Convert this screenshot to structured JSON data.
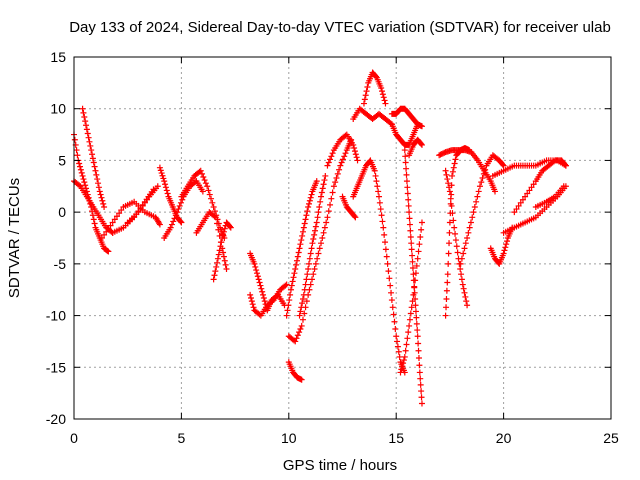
{
  "chart_data": {
    "type": "scatter",
    "title": "Day 133 of 2024, Sidereal Day-to-day VTEC variation (SDTVAR) for receiver ulab",
    "xlabel": "GPS time / hours",
    "ylabel": "SDTVAR / TECUs",
    "xlim": [
      0,
      25
    ],
    "ylim": [
      -20,
      15
    ],
    "xticks": [
      0,
      5,
      10,
      15,
      20,
      25
    ],
    "xtick_labels": [
      "0",
      "5",
      "10",
      "15",
      "20",
      "25"
    ],
    "yticks": [
      -20,
      -15,
      -10,
      -5,
      0,
      5,
      10,
      15
    ],
    "ytick_labels": [
      "-20",
      "-15",
      "-10",
      "-5",
      "0",
      "5",
      "10",
      "15"
    ],
    "grid": true,
    "marker": "+",
    "marker_color": "#ff0000",
    "series": [
      {
        "name": "s1",
        "x": [
          0.0,
          0.2,
          0.4,
          0.6,
          0.8,
          1.0,
          1.2,
          1.4,
          1.6
        ],
        "y": [
          7.5,
          5.0,
          3.5,
          2.0,
          0.5,
          -1.5,
          -2.5,
          -3.5,
          -3.8
        ]
      },
      {
        "name": "s2",
        "x": [
          0.4,
          0.6,
          0.8,
          1.0,
          1.2,
          1.4
        ],
        "y": [
          10.0,
          8.0,
          6.0,
          4.0,
          2.0,
          0.5
        ]
      },
      {
        "name": "s3",
        "x": [
          0.0,
          0.3,
          0.6,
          0.9,
          1.2,
          1.5,
          1.8
        ],
        "y": [
          3.0,
          2.5,
          1.5,
          0.5,
          -0.5,
          -1.5,
          -2.0
        ]
      },
      {
        "name": "s4",
        "x": [
          1.3,
          1.8,
          2.3,
          2.8,
          3.3,
          3.8,
          4.0
        ],
        "y": [
          -2.5,
          -1.0,
          0.5,
          1.0,
          0.0,
          -0.5,
          -1.2
        ]
      },
      {
        "name": "s5",
        "x": [
          1.8,
          2.3,
          2.8,
          3.3,
          3.7
        ],
        "y": [
          -2.0,
          -1.5,
          -0.5,
          1.0,
          2.2
        ]
      },
      {
        "name": "s6",
        "x": [
          2.5,
          3.0,
          3.5,
          3.9
        ],
        "y": [
          -1.0,
          0.0,
          1.5,
          2.5
        ]
      },
      {
        "name": "s7",
        "x": [
          4.0,
          4.2,
          4.4,
          4.6,
          4.8,
          5.0
        ],
        "y": [
          4.3,
          3.0,
          1.5,
          0.5,
          -0.5,
          -1.0
        ]
      },
      {
        "name": "s8",
        "x": [
          4.2,
          4.5,
          4.8,
          5.1,
          5.4,
          5.7,
          6.0
        ],
        "y": [
          -2.5,
          -1.5,
          0.0,
          1.5,
          2.5,
          3.0,
          2.0
        ]
      },
      {
        "name": "s9",
        "x": [
          5.0,
          5.3,
          5.6,
          5.9,
          6.2,
          6.5,
          6.8,
          7.0
        ],
        "y": [
          1.5,
          2.5,
          3.5,
          4.0,
          2.5,
          0.5,
          -1.5,
          -2.5
        ]
      },
      {
        "name": "s10",
        "x": [
          5.7,
          6.0,
          6.3,
          6.6,
          6.9,
          7.1
        ],
        "y": [
          -2.0,
          -1.0,
          0.0,
          -0.5,
          -3.5,
          -5.5
        ]
      },
      {
        "name": "s11",
        "x": [
          6.5,
          6.7,
          6.9,
          7.1,
          7.3
        ],
        "y": [
          -6.5,
          -4.5,
          -2.5,
          -1.0,
          -1.5
        ]
      },
      {
        "name": "s12",
        "x": [
          8.2,
          8.4,
          8.6,
          8.8,
          9.0,
          9.2,
          9.5,
          9.8
        ],
        "y": [
          -4.0,
          -5.0,
          -6.5,
          -8.0,
          -9.5,
          -8.5,
          -8.0,
          -9.0
        ]
      },
      {
        "name": "s13",
        "x": [
          8.2,
          8.4,
          8.7,
          9.0,
          9.3,
          9.6,
          9.9
        ],
        "y": [
          -8.0,
          -9.5,
          -10.0,
          -9.0,
          -8.5,
          -7.5,
          -7.0
        ]
      },
      {
        "name": "s14",
        "x": [
          10.0,
          10.2,
          10.4,
          10.6
        ],
        "y": [
          -14.5,
          -15.5,
          -16.0,
          -16.2
        ]
      },
      {
        "name": "s15",
        "x": [
          10.0,
          10.3,
          10.6,
          10.9,
          11.2,
          11.5,
          11.8,
          12.1,
          12.4,
          12.7,
          12.9
        ],
        "y": [
          -12.0,
          -12.5,
          -11.0,
          -8.0,
          -5.5,
          -3.0,
          -0.5,
          2.5,
          4.5,
          6.0,
          7.0
        ]
      },
      {
        "name": "s16",
        "x": [
          10.5,
          10.7,
          10.9,
          11.1,
          11.3,
          11.5,
          11.7
        ],
        "y": [
          -10.0,
          -8.0,
          -5.5,
          -3.0,
          -1.0,
          1.5,
          3.5
        ]
      },
      {
        "name": "s17",
        "x": [
          9.9,
          10.1,
          10.3,
          10.5,
          10.7,
          10.9,
          11.1,
          11.3
        ],
        "y": [
          -10.0,
          -7.5,
          -5.5,
          -3.5,
          -1.5,
          0.5,
          2.0,
          3.0
        ]
      },
      {
        "name": "s18",
        "x": [
          11.8,
          12.1,
          12.4,
          12.7,
          13.0,
          13.2
        ],
        "y": [
          4.5,
          6.0,
          7.0,
          7.5,
          6.5,
          5.0
        ]
      },
      {
        "name": "s19",
        "x": [
          12.5,
          12.7,
          12.9,
          13.1
        ],
        "y": [
          1.5,
          0.5,
          0.0,
          -0.5
        ]
      },
      {
        "name": "s20",
        "x": [
          13.0,
          13.3,
          13.6,
          13.9,
          14.2,
          14.5,
          14.8
        ],
        "y": [
          9.0,
          10.0,
          9.5,
          9.0,
          9.5,
          9.0,
          8.5
        ]
      },
      {
        "name": "s21",
        "x": [
          13.5,
          13.7,
          13.9,
          14.1,
          14.3,
          14.5
        ],
        "y": [
          10.5,
          12.5,
          13.5,
          13.0,
          12.0,
          10.5
        ]
      },
      {
        "name": "s22",
        "x": [
          13.0,
          13.2,
          13.4,
          13.6,
          13.8,
          14.0,
          14.2,
          14.4,
          14.6,
          14.8,
          15.0,
          15.2,
          15.4
        ],
        "y": [
          1.5,
          2.5,
          3.5,
          4.5,
          5.0,
          4.0,
          1.5,
          -1.5,
          -5.0,
          -8.5,
          -12.0,
          -14.5,
          -15.5
        ]
      },
      {
        "name": "s23",
        "x": [
          14.8,
          15.0,
          15.2,
          15.4,
          15.6,
          15.8,
          16.0,
          16.2
        ],
        "y": [
          9.5,
          9.5,
          10.0,
          10.0,
          9.5,
          9.0,
          8.5,
          8.3
        ]
      },
      {
        "name": "s24",
        "x": [
          14.8,
          15.0,
          15.2,
          15.4,
          15.6,
          15.8,
          16.0
        ],
        "y": [
          8.5,
          7.5,
          7.0,
          6.5,
          6.5,
          7.5,
          8.5
        ]
      },
      {
        "name": "s25",
        "x": [
          15.4,
          15.5,
          15.6,
          15.7,
          15.8,
          15.9,
          16.0,
          16.1,
          16.2
        ],
        "y": [
          6.0,
          3.0,
          0.0,
          -3.0,
          -6.0,
          -9.0,
          -12.0,
          -15.5,
          -18.5
        ]
      },
      {
        "name": "s26",
        "x": [
          15.6,
          15.8,
          16.0,
          16.2
        ],
        "y": [
          5.5,
          6.5,
          7.0,
          6.5
        ]
      },
      {
        "name": "s27",
        "x": [
          15.2,
          15.4,
          15.6,
          15.8,
          16.0,
          16.2
        ],
        "y": [
          -15.5,
          -14.0,
          -11.0,
          -8.0,
          -4.5,
          -1.0
        ]
      },
      {
        "name": "s28",
        "x": [
          17.3,
          17.4,
          17.5,
          17.6,
          17.8,
          18.0,
          18.2,
          18.4
        ],
        "y": [
          -10.0,
          -6.0,
          -1.0,
          3.5,
          5.5,
          6.0,
          6.2,
          6.0
        ]
      },
      {
        "name": "s29",
        "x": [
          17.0,
          17.3,
          17.6,
          17.9,
          18.2,
          18.5,
          18.8,
          19.1,
          19.4,
          19.6
        ],
        "y": [
          5.5,
          5.8,
          6.0,
          6.0,
          6.0,
          5.8,
          5.0,
          4.0,
          3.0,
          2.0
        ]
      },
      {
        "name": "s30",
        "x": [
          17.3,
          17.5,
          17.7,
          17.9,
          18.1,
          18.3
        ],
        "y": [
          4.0,
          2.0,
          -1.5,
          -4.5,
          -7.0,
          -9.0
        ]
      },
      {
        "name": "s31",
        "x": [
          18.0,
          18.3,
          18.6,
          18.9,
          19.2,
          19.5,
          19.8,
          20.0
        ],
        "y": [
          -5.0,
          -2.5,
          0.0,
          2.5,
          4.5,
          5.5,
          5.0,
          4.5
        ]
      },
      {
        "name": "s32",
        "x": [
          19.4,
          19.6,
          19.8,
          20.0,
          20.2,
          20.4
        ],
        "y": [
          -3.5,
          -4.5,
          -5.0,
          -4.0,
          -2.5,
          -1.5
        ]
      },
      {
        "name": "s33",
        "x": [
          19.5,
          20.0,
          20.5,
          21.0,
          21.5,
          22.0,
          22.5,
          22.9
        ],
        "y": [
          3.5,
          4.0,
          4.5,
          4.5,
          4.5,
          5.0,
          5.0,
          4.5
        ]
      },
      {
        "name": "s34",
        "x": [
          20.0,
          20.5,
          21.0,
          21.5,
          22.0,
          22.5,
          22.9
        ],
        "y": [
          -2.0,
          -1.5,
          -1.0,
          -0.5,
          0.5,
          1.5,
          2.5
        ]
      },
      {
        "name": "s35",
        "x": [
          20.5,
          21.0,
          21.5,
          21.8,
          22.1,
          22.4,
          22.7,
          22.9
        ],
        "y": [
          0.0,
          1.5,
          3.0,
          4.0,
          4.5,
          5.0,
          5.0,
          4.5
        ]
      },
      {
        "name": "s36",
        "x": [
          21.5,
          22.0,
          22.4,
          22.8
        ],
        "y": [
          0.5,
          1.0,
          1.5,
          2.5
        ]
      }
    ]
  }
}
